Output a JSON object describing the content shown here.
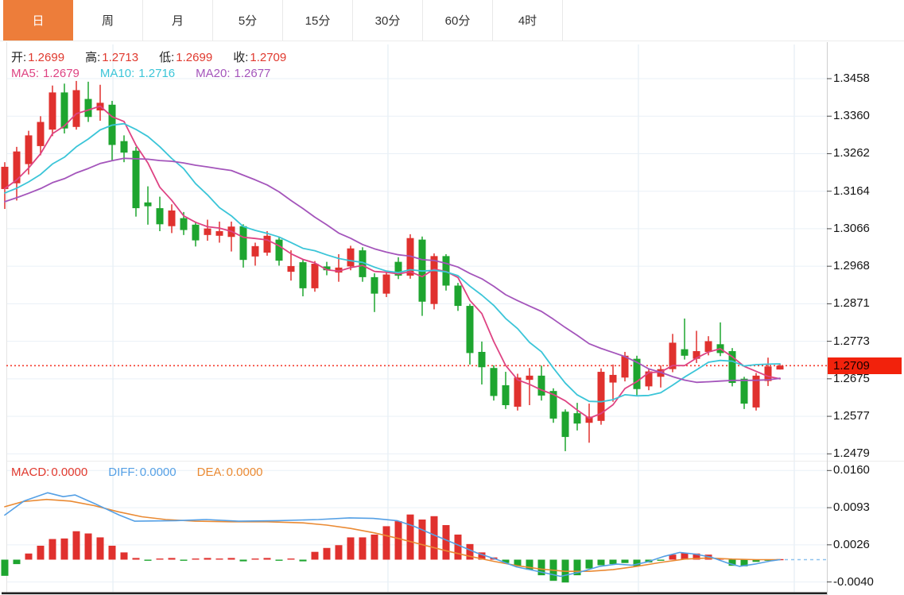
{
  "tabs": [
    {
      "label": "日",
      "active": true
    },
    {
      "label": "周",
      "active": false
    },
    {
      "label": "月",
      "active": false
    },
    {
      "label": "5分",
      "active": false
    },
    {
      "label": "15分",
      "active": false
    },
    {
      "label": "30分",
      "active": false
    },
    {
      "label": "60分",
      "active": false
    },
    {
      "label": "4时",
      "active": false
    }
  ],
  "ohlc_legend": [
    {
      "name": "open",
      "label": "开:",
      "value": "1.2699",
      "label_color": "#1f1f1f",
      "value_color": "#e0392e"
    },
    {
      "name": "high",
      "label": "高:",
      "value": "1.2713",
      "label_color": "#1f1f1f",
      "value_color": "#e0392e"
    },
    {
      "name": "low",
      "label": "低:",
      "value": "1.2699",
      "label_color": "#1f1f1f",
      "value_color": "#e0392e"
    },
    {
      "name": "close",
      "label": "收:",
      "value": "1.2709",
      "label_color": "#1f1f1f",
      "value_color": "#e0392e"
    }
  ],
  "ma_legend": [
    {
      "name": "ma5",
      "label": "MA5:",
      "value": "1.2679",
      "color": "#de4383"
    },
    {
      "name": "ma10",
      "label": "MA10:",
      "value": "1.2716",
      "color": "#3bc5d8"
    },
    {
      "name": "ma20",
      "label": "MA20:",
      "value": "1.2677",
      "color": "#a455bb"
    }
  ],
  "macd_legend": [
    {
      "name": "macd",
      "label": "MACD:",
      "value": "0.0000",
      "color": "#e0392e"
    },
    {
      "name": "diff",
      "label": "DIFF:",
      "value": "0.0000",
      "color": "#55a0e5"
    },
    {
      "name": "dea",
      "label": "DEA:",
      "value": "0.0000",
      "color": "#ea8a33"
    }
  ],
  "price_axis": {
    "ticks": [
      "1.3458",
      "1.3360",
      "1.3262",
      "1.3164",
      "1.3066",
      "1.2968",
      "1.2871",
      "1.2773",
      "1.2675",
      "1.2577",
      "1.2479"
    ],
    "current": "1.2709"
  },
  "macd_axis": {
    "ticks": [
      "0.0160",
      "0.0093",
      "0.0026",
      "-0.0040"
    ]
  },
  "colors": {
    "up": "#e0312e",
    "down": "#1ea52f",
    "tab_active_bg": "#ed7d3a",
    "badge_bg": "#f2220c",
    "ma5": "#de4383",
    "ma10": "#3bc5d8",
    "ma20": "#a455bb",
    "diff": "#55a0e5",
    "dea": "#ea8a33",
    "grid": "#e9f0f7",
    "vgrid": "#dfeaf2",
    "dotted_line": "#f53b2d",
    "axis_line": "#cfcfcf",
    "bottom_border": "#222222"
  },
  "chart_data": {
    "type": "candlestick",
    "convention": "red = up candle, green = down candle (Chinese style)",
    "price_panel": {
      "ylabel_ticks": [
        1.3458,
        1.336,
        1.3262,
        1.3164,
        1.3066,
        1.2968,
        1.2871,
        1.2773,
        1.2675,
        1.2577,
        1.2479
      ],
      "current_price": 1.2709,
      "last_ohlc": {
        "open": 1.2699,
        "high": 1.2713,
        "low": 1.2699,
        "close": 1.2709
      },
      "ma_values": {
        "MA5": 1.2679,
        "MA10": 1.2716,
        "MA20": 1.2677
      },
      "ohlc_format": [
        "open",
        "close",
        "low",
        "high"
      ],
      "candles": [
        [
          1.317,
          1.3228,
          1.3118,
          1.324
        ],
        [
          1.3185,
          1.3268,
          1.314,
          1.328
        ],
        [
          1.3235,
          1.331,
          1.3208,
          1.3322
        ],
        [
          1.3282,
          1.3345,
          1.3258,
          1.336
        ],
        [
          1.3325,
          1.3422,
          1.3308,
          1.344
        ],
        [
          1.3422,
          1.3328,
          1.3315,
          1.3445
        ],
        [
          1.3332,
          1.3428,
          1.3325,
          1.3452
        ],
        [
          1.3405,
          1.3358,
          1.3345,
          1.345
        ],
        [
          1.3375,
          1.3395,
          1.3348,
          1.3442
        ],
        [
          1.339,
          1.3285,
          1.3243,
          1.34
        ],
        [
          1.3295,
          1.3265,
          1.324,
          1.331
        ],
        [
          1.327,
          1.312,
          1.3098,
          1.328
        ],
        [
          1.3135,
          1.3125,
          1.3077,
          1.3177
        ],
        [
          1.312,
          1.3078,
          1.306,
          1.315
        ],
        [
          1.3073,
          1.3114,
          1.3055,
          1.313
        ],
        [
          1.3094,
          1.3063,
          1.305,
          1.311
        ],
        [
          1.3077,
          1.3036,
          1.302,
          1.3085
        ],
        [
          1.305,
          1.3067,
          1.3035,
          1.309
        ],
        [
          1.3048,
          1.306,
          1.303,
          1.3085
        ],
        [
          1.3045,
          1.3072,
          1.3007,
          1.3085
        ],
        [
          1.3073,
          1.2985,
          1.2965,
          1.3078
        ],
        [
          1.2994,
          1.3021,
          1.297,
          1.303
        ],
        [
          1.3004,
          1.3048,
          1.2996,
          1.306
        ],
        [
          1.3038,
          1.2983,
          1.297,
          1.3045
        ],
        [
          1.2954,
          1.2969,
          1.2931,
          1.301
        ],
        [
          1.2979,
          1.2911,
          1.289,
          1.2985
        ],
        [
          1.2911,
          1.2975,
          1.2902,
          1.2982
        ],
        [
          1.2968,
          1.2958,
          1.2945,
          1.298
        ],
        [
          1.2952,
          1.2965,
          1.2928,
          1.3
        ],
        [
          1.2968,
          1.3015,
          1.2958,
          1.3022
        ],
        [
          1.301,
          1.294,
          1.2928,
          1.3018
        ],
        [
          1.294,
          1.2897,
          1.2849,
          1.295
        ],
        [
          1.2897,
          1.2947,
          1.2888,
          1.2955
        ],
        [
          1.298,
          1.2944,
          1.2935,
          1.2992
        ],
        [
          1.2944,
          1.3042,
          1.2936,
          1.3052
        ],
        [
          1.3038,
          1.2876,
          1.2839,
          1.3046
        ],
        [
          1.287,
          1.2995,
          1.2856,
          1.3002
        ],
        [
          1.2995,
          1.2918,
          1.2905,
          1.3
        ],
        [
          1.2918,
          1.2865,
          1.2852,
          1.2925
        ],
        [
          1.2865,
          1.2742,
          1.2712,
          1.287
        ],
        [
          1.2745,
          1.2705,
          1.266,
          1.2772
        ],
        [
          1.2703,
          1.263,
          1.2618,
          1.271
        ],
        [
          1.2658,
          1.2606,
          1.2596,
          1.2693
        ],
        [
          1.2602,
          1.2678,
          1.2592,
          1.2688
        ],
        [
          1.2672,
          1.2683,
          1.2606,
          1.2703
        ],
        [
          1.2683,
          1.2631,
          1.2618,
          1.2709
        ],
        [
          1.2643,
          1.2571,
          1.256,
          1.265
        ],
        [
          1.2589,
          1.2523,
          1.2486,
          1.2595
        ],
        [
          1.2585,
          1.2558,
          1.254,
          1.2612
        ],
        [
          1.256,
          1.2576,
          1.2508,
          1.261
        ],
        [
          1.2565,
          1.2693,
          1.2555,
          1.2702
        ],
        [
          1.2665,
          1.2685,
          1.2615,
          1.2712
        ],
        [
          1.2678,
          1.2735,
          1.2668,
          1.2745
        ],
        [
          1.2727,
          1.2648,
          1.263,
          1.2735
        ],
        [
          1.2655,
          1.2694,
          1.2645,
          1.2702
        ],
        [
          1.268,
          1.27,
          1.2652,
          1.271
        ],
        [
          1.27,
          1.2769,
          1.2692,
          1.2792
        ],
        [
          1.2752,
          1.2735,
          1.2725,
          1.2832
        ],
        [
          1.2727,
          1.2747,
          1.2716,
          1.28
        ],
        [
          1.2745,
          1.2773,
          1.2736,
          1.2786
        ],
        [
          1.2765,
          1.2742,
          1.2734,
          1.2822
        ],
        [
          1.2747,
          1.2664,
          1.2655,
          1.2755
        ],
        [
          1.2675,
          1.261,
          1.2596,
          1.268
        ],
        [
          1.26,
          1.2683,
          1.2592,
          1.269
        ],
        [
          1.2669,
          1.2707,
          1.2656,
          1.273
        ],
        [
          1.2699,
          1.2709,
          1.2699,
          1.2713
        ]
      ],
      "ma_windows": [
        5,
        10,
        20
      ],
      "ma_seed_closes": [
        1.306,
        1.308,
        1.31,
        1.311,
        1.312,
        1.3125,
        1.313,
        1.3135,
        1.314,
        1.314,
        1.3145,
        1.3145,
        1.315,
        1.315,
        1.3152,
        1.3155,
        1.3155,
        1.3158,
        1.316
      ]
    },
    "macd_panel": {
      "ylabel_ticks": [
        0.016,
        0.0093,
        0.0026,
        -0.004
      ],
      "histogram": [
        -0.0029,
        -0.0008,
        0.0011,
        0.0025,
        0.0037,
        0.0038,
        0.0051,
        0.0047,
        0.004,
        0.0025,
        0.0013,
        0.0003,
        -0.0002,
        0.0002,
        0.0003,
        -0.0002,
        0.0002,
        0.0003,
        0.0002,
        0.0003,
        -0.0003,
        0.0002,
        0.0003,
        -0.0002,
        0.0002,
        -0.0003,
        0.0014,
        0.0021,
        0.0026,
        0.004,
        0.004,
        0.0045,
        0.006,
        0.0069,
        0.0081,
        0.0072,
        0.0078,
        0.0062,
        0.0045,
        0.0028,
        0.0013,
        0.0004,
        -0.0006,
        -0.0012,
        -0.0018,
        -0.0028,
        -0.0038,
        -0.0041,
        -0.0028,
        -0.0016,
        -0.001,
        -0.0008,
        -0.0006,
        -0.0012,
        -0.0005,
        -0.0002,
        0.0009,
        0.0012,
        0.0011,
        0.0009,
        0.0002,
        -0.0011,
        -0.0012,
        -0.0004,
        -0.0001,
        0.0001
      ],
      "diff_points": [
        [
          0,
          0.008
        ],
        [
          1.6,
          0.0105
        ],
        [
          3.6,
          0.012
        ],
        [
          4.9,
          0.0113
        ],
        [
          5.9,
          0.0116
        ],
        [
          7.6,
          0.01
        ],
        [
          9.6,
          0.008
        ],
        [
          10.9,
          0.0069
        ],
        [
          14.3,
          0.007
        ],
        [
          16.9,
          0.0072
        ],
        [
          19.6,
          0.0069
        ],
        [
          22.9,
          0.007
        ],
        [
          26.3,
          0.0072
        ],
        [
          28.9,
          0.0075
        ],
        [
          30.9,
          0.0074
        ],
        [
          32.9,
          0.007
        ],
        [
          34.3,
          0.006
        ],
        [
          35.9,
          0.0045
        ],
        [
          37.6,
          0.003
        ],
        [
          39.6,
          0.0012
        ],
        [
          41.3,
          0.0
        ],
        [
          42.9,
          -0.0013
        ],
        [
          44.9,
          -0.0022
        ],
        [
          46.6,
          -0.003
        ],
        [
          48.3,
          -0.0022
        ],
        [
          49.9,
          -0.0012
        ],
        [
          51.3,
          -0.0008
        ],
        [
          52.6,
          -0.001
        ],
        [
          53.9,
          -0.0004
        ],
        [
          55.3,
          0.0006
        ],
        [
          56.6,
          0.0013
        ],
        [
          57.9,
          0.001
        ],
        [
          59.3,
          0.0004
        ],
        [
          60.6,
          -0.0006
        ],
        [
          61.6,
          -0.0012
        ],
        [
          62.9,
          -0.0008
        ],
        [
          64.3,
          -0.0002
        ],
        [
          65,
          0.0
        ]
      ],
      "dea_points": [
        [
          0,
          0.0095
        ],
        [
          1.5,
          0.0104
        ],
        [
          3.5,
          0.0108
        ],
        [
          5.5,
          0.0105
        ],
        [
          7.5,
          0.0097
        ],
        [
          9.5,
          0.0086
        ],
        [
          11.5,
          0.0077
        ],
        [
          13.5,
          0.0072
        ],
        [
          16,
          0.0069
        ],
        [
          19,
          0.0068
        ],
        [
          22,
          0.0068
        ],
        [
          25,
          0.0066
        ],
        [
          27,
          0.0062
        ],
        [
          29,
          0.0056
        ],
        [
          31,
          0.0048
        ],
        [
          33,
          0.0038
        ],
        [
          35,
          0.0027
        ],
        [
          37,
          0.0016
        ],
        [
          39,
          0.0006
        ],
        [
          41,
          -0.0003
        ],
        [
          43,
          -0.0011
        ],
        [
          45,
          -0.0017
        ],
        [
          47,
          -0.0021
        ],
        [
          49,
          -0.0021
        ],
        [
          51,
          -0.0018
        ],
        [
          53,
          -0.0012
        ],
        [
          55,
          -0.0005
        ],
        [
          57,
          0.0001
        ],
        [
          59,
          0.0003
        ],
        [
          61,
          0.0001
        ],
        [
          63,
          0.0
        ],
        [
          65,
          0.0
        ]
      ]
    },
    "time_gridlines_candle_index": [
      9.07,
      32.13,
      53.13,
      66.2
    ]
  }
}
